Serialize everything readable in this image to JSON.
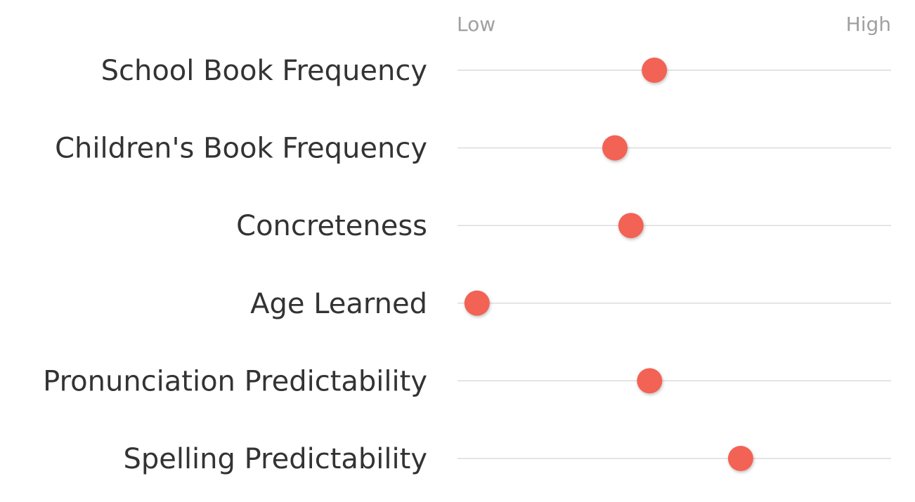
{
  "chart_data": {
    "type": "scatter",
    "title": "",
    "scale_low_label": "Low",
    "scale_high_label": "High",
    "xlim": [
      0,
      1
    ],
    "marker_color": "#f26254",
    "track_color": "#dcdcdc",
    "categories": [
      "School Book Frequency",
      "Children's Book Frequency",
      "Concreteness",
      "Age Learned",
      "Pronunciation Predictability",
      "Spelling Predictability"
    ],
    "values": [
      0.454,
      0.363,
      0.4,
      0.045,
      0.443,
      0.653
    ]
  }
}
